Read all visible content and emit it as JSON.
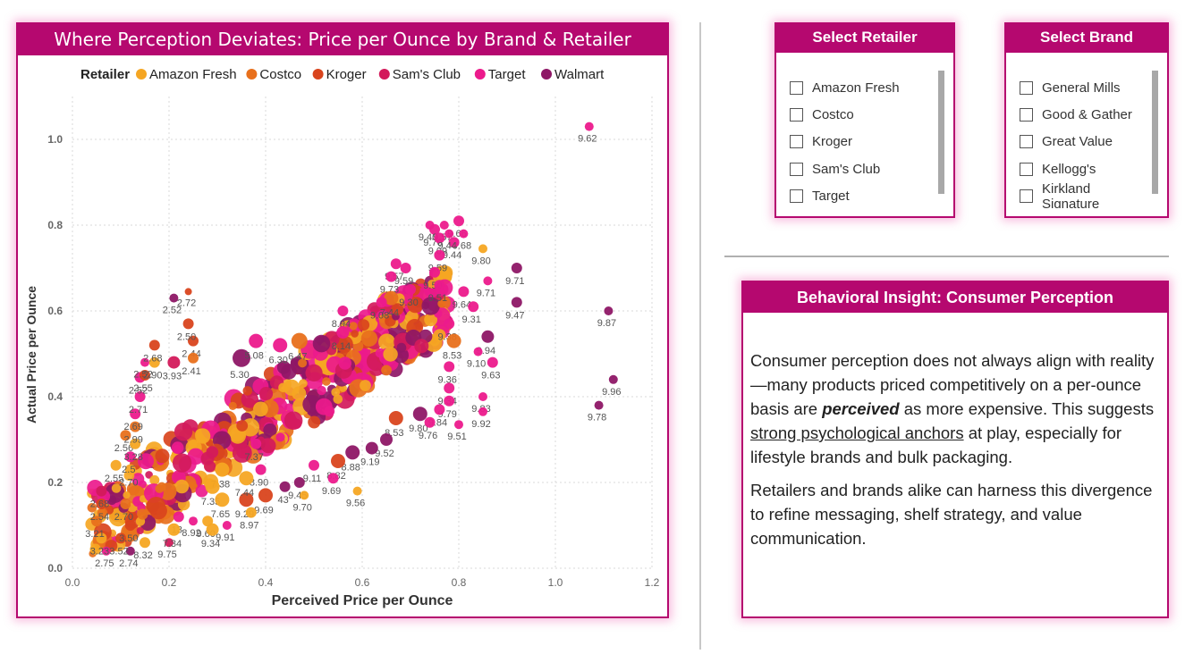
{
  "chart": {
    "title": "Where Perception Deviates: Price per Ounce by Brand & Retailer",
    "legend_title": "Retailer",
    "legend_placement": "top"
  },
  "chart_data": {
    "type": "scatter",
    "title": "Where Perception Deviates: Price per Ounce by Brand & Retailer",
    "xlabel": "Perceived Price per Ounce",
    "ylabel": "Actual Price per Ounce",
    "xlim": [
      0,
      1.2
    ],
    "ylim": [
      0,
      1.1
    ],
    "xticks": [
      "0.0",
      "0.2",
      "0.4",
      "0.6",
      "0.8",
      "1.0",
      "1.2"
    ],
    "yticks": [
      "0.0",
      "0.2",
      "0.4",
      "0.6",
      "0.8",
      "1.0"
    ],
    "grid": true,
    "point_labels": "score",
    "series": [
      {
        "name": "Amazon Fresh",
        "color": "#f5a623"
      },
      {
        "name": "Costco",
        "color": "#e8701c"
      },
      {
        "name": "Kroger",
        "color": "#d9441d"
      },
      {
        "name": "Sam's Club",
        "color": "#d31a5b"
      },
      {
        "name": "Target",
        "color": "#ec1a8c"
      },
      {
        "name": "Walmart",
        "color": "#8e1766"
      }
    ],
    "labeled_points": [
      {
        "x": 1.07,
        "y": 1.03,
        "label": "9.62",
        "series": "Target",
        "r": 5
      },
      {
        "x": 0.8,
        "y": 0.81,
        "label": "9.66",
        "series": "Target",
        "r": 6
      },
      {
        "x": 0.81,
        "y": 0.78,
        "label": "9.68",
        "series": "Target",
        "r": 5
      },
      {
        "x": 0.77,
        "y": 0.8,
        "label": "9.57",
        "series": "Target",
        "r": 5
      },
      {
        "x": 0.75,
        "y": 0.79,
        "label": "9.70",
        "series": "Target",
        "r": 6
      },
      {
        "x": 0.74,
        "y": 0.8,
        "label": "9.40",
        "series": "Target",
        "r": 5
      },
      {
        "x": 0.76,
        "y": 0.77,
        "label": "9.09",
        "series": "Target",
        "r": 6
      },
      {
        "x": 0.79,
        "y": 0.76,
        "label": "9.44",
        "series": "Target",
        "r": 6
      },
      {
        "x": 0.78,
        "y": 0.78,
        "label": "9.44",
        "series": "Target",
        "r": 5
      },
      {
        "x": 0.85,
        "y": 0.745,
        "label": "9.80",
        "series": "Amazon Fresh",
        "r": 5
      },
      {
        "x": 0.76,
        "y": 0.73,
        "label": "9.59",
        "series": "Target",
        "r": 6
      },
      {
        "x": 0.92,
        "y": 0.7,
        "label": "9.71",
        "series": "Walmart",
        "r": 6
      },
      {
        "x": 0.86,
        "y": 0.67,
        "label": "9.71",
        "series": "Target",
        "r": 5
      },
      {
        "x": 0.75,
        "y": 0.69,
        "label": "9.50",
        "series": "Target",
        "r": 6
      },
      {
        "x": 0.76,
        "y": 0.66,
        "label": "9.51",
        "series": "Target",
        "r": 6
      },
      {
        "x": 0.81,
        "y": 0.645,
        "label": "9.64",
        "series": "Target",
        "r": 6
      },
      {
        "x": 0.92,
        "y": 0.62,
        "label": "9.47",
        "series": "Walmart",
        "r": 6
      },
      {
        "x": 0.83,
        "y": 0.61,
        "label": "9.31",
        "series": "Target",
        "r": 6
      },
      {
        "x": 1.11,
        "y": 0.6,
        "label": "9.87",
        "series": "Walmart",
        "r": 5
      },
      {
        "x": 0.67,
        "y": 0.71,
        "label": "9.57",
        "series": "Target",
        "r": 6
      },
      {
        "x": 0.69,
        "y": 0.7,
        "label": "9.59",
        "series": "Target",
        "r": 6
      },
      {
        "x": 0.66,
        "y": 0.68,
        "label": "9.73",
        "series": "Target",
        "r": 6
      },
      {
        "x": 0.7,
        "y": 0.65,
        "label": "9.30",
        "series": "Target",
        "r": 6
      },
      {
        "x": 0.66,
        "y": 0.63,
        "label": "7.44",
        "series": "Costco",
        "r": 8
      },
      {
        "x": 0.64,
        "y": 0.62,
        "label": "9.08",
        "series": "Target",
        "r": 6
      },
      {
        "x": 0.56,
        "y": 0.6,
        "label": "8.94",
        "series": "Target",
        "r": 6
      },
      {
        "x": 0.78,
        "y": 0.57,
        "label": "9.38",
        "series": "Target",
        "r": 6
      },
      {
        "x": 0.86,
        "y": 0.54,
        "label": "9.94",
        "series": "Walmart",
        "r": 7
      },
      {
        "x": 0.79,
        "y": 0.53,
        "label": "8.53",
        "series": "Costco",
        "r": 8
      },
      {
        "x": 0.84,
        "y": 0.505,
        "label": "9.10",
        "series": "Target",
        "r": 5
      },
      {
        "x": 0.87,
        "y": 0.48,
        "label": "9.63",
        "series": "Target",
        "r": 6
      },
      {
        "x": 0.78,
        "y": 0.47,
        "label": "9.36",
        "series": "Target",
        "r": 6
      },
      {
        "x": 0.78,
        "y": 0.42,
        "label": "9.34",
        "series": "Target",
        "r": 6
      },
      {
        "x": 1.12,
        "y": 0.44,
        "label": "9.96",
        "series": "Walmart",
        "r": 5
      },
      {
        "x": 0.85,
        "y": 0.4,
        "label": "9.83",
        "series": "Target",
        "r": 5
      },
      {
        "x": 1.09,
        "y": 0.38,
        "label": "9.78",
        "series": "Walmart",
        "r": 5
      },
      {
        "x": 0.78,
        "y": 0.39,
        "label": "9.79",
        "series": "Target",
        "r": 6
      },
      {
        "x": 0.76,
        "y": 0.37,
        "label": "9.84",
        "series": "Target",
        "r": 6
      },
      {
        "x": 0.85,
        "y": 0.365,
        "label": "9.92",
        "series": "Target",
        "r": 5
      },
      {
        "x": 0.72,
        "y": 0.36,
        "label": "9.80",
        "series": "Walmart",
        "r": 8
      },
      {
        "x": 0.67,
        "y": 0.35,
        "label": "8.53",
        "series": "Kroger",
        "r": 8
      },
      {
        "x": 0.74,
        "y": 0.34,
        "label": "9.76",
        "series": "Target",
        "r": 6
      },
      {
        "x": 0.8,
        "y": 0.335,
        "label": "9.51",
        "series": "Target",
        "r": 5
      },
      {
        "x": 0.65,
        "y": 0.3,
        "label": "9.52",
        "series": "Walmart",
        "r": 7
      },
      {
        "x": 0.62,
        "y": 0.28,
        "label": "9.19",
        "series": "Walmart",
        "r": 7
      },
      {
        "x": 0.58,
        "y": 0.27,
        "label": "8.88",
        "series": "Walmart",
        "r": 8
      },
      {
        "x": 0.55,
        "y": 0.25,
        "label": "8.82",
        "series": "Kroger",
        "r": 8
      },
      {
        "x": 0.5,
        "y": 0.24,
        "label": "9.11",
        "series": "Target",
        "r": 6
      },
      {
        "x": 0.54,
        "y": 0.21,
        "label": "9.69",
        "series": "Target",
        "r": 6
      },
      {
        "x": 0.47,
        "y": 0.2,
        "label": "9.45",
        "series": "Walmart",
        "r": 6
      },
      {
        "x": 0.44,
        "y": 0.19,
        "label": "43",
        "series": "Walmart",
        "r": 6
      },
      {
        "x": 0.48,
        "y": 0.17,
        "label": "9.70",
        "series": "Amazon Fresh",
        "r": 5
      },
      {
        "x": 0.59,
        "y": 0.18,
        "label": "9.56",
        "series": "Amazon Fresh",
        "r": 5
      },
      {
        "x": 0.4,
        "y": 0.17,
        "label": "9.69",
        "series": "Kroger",
        "r": 8
      },
      {
        "x": 0.36,
        "y": 0.16,
        "label": "9.29",
        "series": "Kroger",
        "r": 8
      },
      {
        "x": 0.37,
        "y": 0.13,
        "label": "8.97",
        "series": "Amazon Fresh",
        "r": 6
      },
      {
        "x": 0.39,
        "y": 0.23,
        "label": "8.90",
        "series": "Target",
        "r": 6
      },
      {
        "x": 0.38,
        "y": 0.29,
        "label": "7.37",
        "series": "Target",
        "r": 6
      },
      {
        "x": 0.36,
        "y": 0.21,
        "label": "7.44",
        "series": "Amazon Fresh",
        "r": 8
      },
      {
        "x": 0.31,
        "y": 0.23,
        "label": "7.38",
        "series": "Amazon Fresh",
        "r": 8
      },
      {
        "x": 0.29,
        "y": 0.19,
        "label": "7.35",
        "series": "Amazon Fresh",
        "r": 8
      },
      {
        "x": 0.31,
        "y": 0.16,
        "label": "7.65",
        "series": "Amazon Fresh",
        "r": 8
      },
      {
        "x": 0.32,
        "y": 0.1,
        "label": "9.91",
        "series": "Target",
        "r": 5
      },
      {
        "x": 0.28,
        "y": 0.11,
        "label": "9.60",
        "series": "Amazon Fresh",
        "r": 6
      },
      {
        "x": 0.29,
        "y": 0.09,
        "label": "9.34",
        "series": "Amazon Fresh",
        "r": 7
      },
      {
        "x": 0.25,
        "y": 0.11,
        "label": "8.92",
        "series": "Target",
        "r": 5
      },
      {
        "x": 0.22,
        "y": 0.12,
        "label": "13",
        "series": "Target",
        "r": 6
      },
      {
        "x": 0.2,
        "y": 0.06,
        "label": "9.75",
        "series": "Sam's Club",
        "r": 5
      },
      {
        "x": 0.15,
        "y": 0.06,
        "label": "8.32",
        "series": "Amazon Fresh",
        "r": 6
      },
      {
        "x": 0.21,
        "y": 0.09,
        "label": "7.34",
        "series": "Amazon Fresh",
        "r": 7
      },
      {
        "x": 0.12,
        "y": 0.04,
        "label": "2.74",
        "series": "Walmart",
        "r": 5
      },
      {
        "x": 0.07,
        "y": 0.04,
        "label": "2.75",
        "series": "Target",
        "r": 5
      },
      {
        "x": 0.06,
        "y": 0.07,
        "label": "3.23",
        "series": "Amazon Fresh",
        "r": 6
      },
      {
        "x": 0.1,
        "y": 0.07,
        "label": "3.52",
        "series": "Kroger",
        "r": 6
      },
      {
        "x": 0.05,
        "y": 0.11,
        "label": "3.21",
        "series": "Costco",
        "r": 6
      },
      {
        "x": 0.12,
        "y": 0.1,
        "label": "3.50",
        "series": "Kroger",
        "r": 6
      },
      {
        "x": 0.06,
        "y": 0.15,
        "label": "2.54",
        "series": "Kroger",
        "r": 6
      },
      {
        "x": 0.11,
        "y": 0.15,
        "label": "2.70",
        "series": "Costco",
        "r": 6
      },
      {
        "x": 0.06,
        "y": 0.18,
        "label": "2.68",
        "series": "Sam's Club",
        "r": 6
      },
      {
        "x": 0.09,
        "y": 0.24,
        "label": "2.55",
        "series": "Amazon Fresh",
        "r": 6
      },
      {
        "x": 0.12,
        "y": 0.23,
        "label": "2.70",
        "series": "Amazon Fresh",
        "r": 6
      },
      {
        "x": 0.12,
        "y": 0.26,
        "label": "2.5",
        "series": "Target",
        "r": 6
      },
      {
        "x": 0.11,
        "y": 0.31,
        "label": "2.56",
        "series": "Costco",
        "r": 6
      },
      {
        "x": 0.13,
        "y": 0.29,
        "label": "3.28",
        "series": "Amazon Fresh",
        "r": 6
      },
      {
        "x": 0.13,
        "y": 0.33,
        "label": "2.99",
        "series": "Costco",
        "r": 6
      },
      {
        "x": 0.13,
        "y": 0.36,
        "label": "2.69",
        "series": "Target",
        "r": 6
      },
      {
        "x": 0.14,
        "y": 0.4,
        "label": "2.71",
        "series": "Target",
        "r": 6
      },
      {
        "x": 0.14,
        "y": 0.445,
        "label": "2.52",
        "series": "Target",
        "r": 6
      },
      {
        "x": 0.15,
        "y": 0.45,
        "label": "2.55",
        "series": "Kroger",
        "r": 6
      },
      {
        "x": 0.15,
        "y": 0.48,
        "label": "2.52",
        "series": "Target",
        "r": 5
      },
      {
        "x": 0.17,
        "y": 0.48,
        "label": "2.90",
        "series": "Amazon Fresh",
        "r": 6
      },
      {
        "x": 0.17,
        "y": 0.52,
        "label": "2.68",
        "series": "Kroger",
        "r": 6
      },
      {
        "x": 0.21,
        "y": 0.48,
        "label": "3.93",
        "series": "Sam's Club",
        "r": 7
      },
      {
        "x": 0.25,
        "y": 0.53,
        "label": "2.44",
        "series": "Kroger",
        "r": 6
      },
      {
        "x": 0.25,
        "y": 0.49,
        "label": "2.41",
        "series": "Costco",
        "r": 6
      },
      {
        "x": 0.24,
        "y": 0.57,
        "label": "2.50",
        "series": "Kroger",
        "r": 6
      },
      {
        "x": 0.21,
        "y": 0.63,
        "label": "2.52",
        "series": "Walmart",
        "r": 5
      },
      {
        "x": 0.24,
        "y": 0.645,
        "label": "2.72",
        "series": "Kroger",
        "r": 4
      },
      {
        "x": 0.35,
        "y": 0.49,
        "label": "5.30",
        "series": "Walmart",
        "r": 10
      },
      {
        "x": 0.38,
        "y": 0.53,
        "label": "5.08",
        "series": "Target",
        "r": 8
      },
      {
        "x": 0.43,
        "y": 0.52,
        "label": "6.30",
        "series": "Target",
        "r": 8
      },
      {
        "x": 0.47,
        "y": 0.53,
        "label": "6.47",
        "series": "Costco",
        "r": 9
      },
      {
        "x": 0.56,
        "y": 0.55,
        "label": "8.14",
        "series": "Target",
        "r": 7
      }
    ],
    "cloud": {
      "n": 520,
      "slope": 0.72,
      "intercept": 0.07,
      "xmin": 0.04,
      "xmax": 0.78,
      "spread": 0.09,
      "seed": 7
    }
  },
  "retailer_slicer": {
    "title": "Select Retailer",
    "items": [
      "Amazon Fresh",
      "Costco",
      "Kroger",
      "Sam's Club",
      "Target"
    ]
  },
  "brand_slicer": {
    "title": "Select Brand",
    "items": [
      "General Mills",
      "Good & Gather",
      "Great Value",
      "Kellogg's",
      "Kirkland Signature"
    ]
  },
  "insight": {
    "title": "Behavioral Insight: Consumer Perception",
    "p1_a": "Consumer perception does not always align with reality—many products priced competitively on a per-ounce basis are ",
    "p1_em": "perceived",
    "p1_b": " as more expensive. This suggests ",
    "p1_ul": "strong psychological anchors",
    "p1_c": " at play, especially for lifestyle brands and bulk packaging.",
    "p2": "Retailers and brands alike can harness this divergence to refine messaging, shelf strategy, and value communication."
  }
}
